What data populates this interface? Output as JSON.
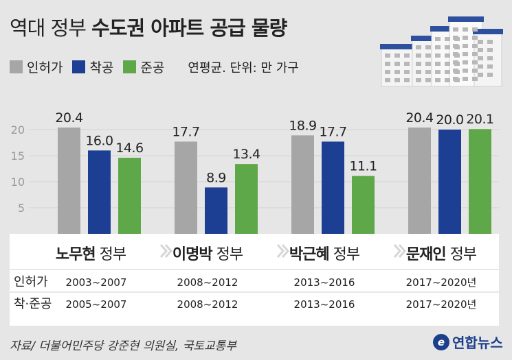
{
  "title": {
    "light": "역대 정부 ",
    "bold": "수도권 아파트 공급 물량"
  },
  "legend": [
    {
      "label": "인허가",
      "color": "#a6a6a6"
    },
    {
      "label": "착공",
      "color": "#1c3f94"
    },
    {
      "label": "준공",
      "color": "#5fa84a"
    }
  ],
  "unit_note": "연평균. 단위: 만 가구",
  "chart_data": {
    "type": "bar",
    "categories": [
      "노무현 정부",
      "이명박 정부",
      "박근혜 정부",
      "문재인 정부"
    ],
    "category_names": [
      {
        "bold": "노무현",
        "rest": " 정부"
      },
      {
        "bold": "이명박",
        "rest": " 정부"
      },
      {
        "bold": "박근혜",
        "rest": " 정부"
      },
      {
        "bold": "문재인",
        "rest": " 정부"
      }
    ],
    "series": [
      {
        "name": "인허가",
        "values": [
          20.4,
          17.7,
          18.9,
          20.4
        ]
      },
      {
        "name": "착공",
        "values": [
          16.0,
          8.9,
          17.7,
          20.0
        ]
      },
      {
        "name": "준공",
        "values": [
          14.6,
          13.4,
          11.1,
          20.1
        ]
      }
    ],
    "data_labels": [
      [
        "20.4",
        "16.0",
        "14.6"
      ],
      [
        "17.7",
        "8.9",
        "13.4"
      ],
      [
        "18.9",
        "17.7",
        "11.1"
      ],
      [
        "20.4",
        "20.0",
        "20.1"
      ]
    ],
    "yticks": [
      5,
      10,
      15,
      20
    ],
    "ylim": [
      0,
      22
    ],
    "grid": true
  },
  "periods": {
    "rows": [
      {
        "label": "인허가",
        "values": [
          "2003~2007",
          "2008~2012",
          "2013~2016",
          "2017~2020년"
        ]
      },
      {
        "label": "착·준공",
        "values": [
          "2005~2007",
          "2008~2012",
          "2013~2016",
          "2017~2020년"
        ]
      }
    ]
  },
  "source": "자료/ 더불어민주당 강준현 의원실, 국토교통부",
  "logo_text": "연합뉴스",
  "logo_mark": "e"
}
